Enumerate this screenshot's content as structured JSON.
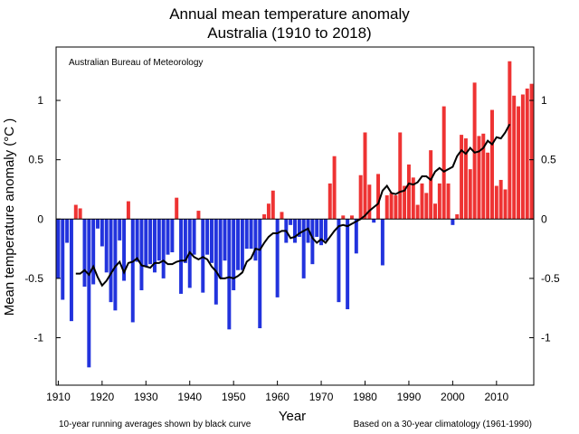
{
  "chart_data": {
    "type": "bar",
    "title": [
      "Annual mean temperature anomaly",
      "Australia (1910 to 2018)"
    ],
    "xlabel": "Year",
    "ylabel": "Mean temperature anomaly (°C )",
    "annotation": "Australian Bureau of Meteorology",
    "footnote_left": "10-year running averages shown by black curve",
    "footnote_right": "Based on a 30-year climatology (1961-1990)",
    "xlim": [
      1909.5,
      2018.5
    ],
    "ylim": [
      -1.4,
      1.45
    ],
    "x_ticks": [
      1910,
      1920,
      1930,
      1940,
      1950,
      1960,
      1970,
      1980,
      1990,
      2000,
      2010
    ],
    "y_ticks": [
      -1,
      -0.5,
      0,
      0.5,
      1
    ],
    "grid": false,
    "colors": {
      "positive": "#ee3333",
      "negative": "#2233dd",
      "running_mean": "#000000"
    },
    "x": [
      1910,
      1911,
      1912,
      1913,
      1914,
      1915,
      1916,
      1917,
      1918,
      1919,
      1920,
      1921,
      1922,
      1923,
      1924,
      1925,
      1926,
      1927,
      1928,
      1929,
      1930,
      1931,
      1932,
      1933,
      1934,
      1935,
      1936,
      1937,
      1938,
      1939,
      1940,
      1941,
      1942,
      1943,
      1944,
      1945,
      1946,
      1947,
      1948,
      1949,
      1950,
      1951,
      1952,
      1953,
      1954,
      1955,
      1956,
      1957,
      1958,
      1959,
      1960,
      1961,
      1962,
      1963,
      1964,
      1965,
      1966,
      1967,
      1968,
      1969,
      1970,
      1971,
      1972,
      1973,
      1974,
      1975,
      1976,
      1977,
      1978,
      1979,
      1980,
      1981,
      1982,
      1983,
      1984,
      1985,
      1986,
      1987,
      1988,
      1989,
      1990,
      1991,
      1992,
      1993,
      1994,
      1995,
      1996,
      1997,
      1998,
      1999,
      2000,
      2001,
      2002,
      2003,
      2004,
      2005,
      2006,
      2007,
      2008,
      2009,
      2010,
      2011,
      2012,
      2013,
      2014,
      2015,
      2016,
      2017,
      2018
    ],
    "values": [
      -0.5,
      -0.68,
      -0.2,
      -0.86,
      0.12,
      0.09,
      -0.57,
      -1.25,
      -0.55,
      -0.08,
      -0.23,
      -0.45,
      -0.7,
      -0.77,
      -0.18,
      -0.52,
      0.15,
      -0.87,
      -0.36,
      -0.6,
      -0.4,
      -0.38,
      -0.45,
      -0.35,
      -0.5,
      -0.3,
      -0.28,
      0.18,
      -0.63,
      -0.37,
      -0.58,
      -0.3,
      0.07,
      -0.62,
      -0.3,
      -0.37,
      -0.72,
      -0.5,
      -0.35,
      -0.93,
      -0.6,
      -0.43,
      -0.43,
      -0.25,
      -0.25,
      -0.35,
      -0.92,
      0.04,
      0.13,
      0.24,
      -0.66,
      0.06,
      -0.2,
      -0.05,
      -0.2,
      -0.15,
      -0.5,
      -0.2,
      -0.38,
      -0.15,
      -0.22,
      -0.18,
      0.3,
      0.53,
      -0.7,
      0.03,
      -0.76,
      0.03,
      -0.29,
      0.37,
      0.73,
      0.29,
      -0.03,
      0.38,
      -0.39,
      0.2,
      0.22,
      0.2,
      0.73,
      0.28,
      0.46,
      0.35,
      0.12,
      0.3,
      0.22,
      0.58,
      0.13,
      0.3,
      0.95,
      0.3,
      -0.05,
      0.04,
      0.71,
      0.68,
      0.42,
      1.15,
      0.7,
      0.72,
      0.56,
      0.92,
      0.28,
      0.33,
      0.25,
      1.33,
      1.04,
      0.95,
      1.05,
      1.1,
      1.14
    ],
    "running_mean_x": [
      1914,
      1915,
      1916,
      1917,
      1918,
      1919,
      1920,
      1921,
      1922,
      1923,
      1924,
      1925,
      1926,
      1927,
      1928,
      1929,
      1930,
      1931,
      1932,
      1933,
      1934,
      1935,
      1936,
      1937,
      1938,
      1939,
      1940,
      1941,
      1942,
      1943,
      1944,
      1945,
      1946,
      1947,
      1948,
      1949,
      1950,
      1951,
      1952,
      1953,
      1954,
      1955,
      1956,
      1957,
      1958,
      1959,
      1960,
      1961,
      1962,
      1963,
      1964,
      1965,
      1966,
      1967,
      1968,
      1969,
      1970,
      1971,
      1972,
      1973,
      1974,
      1975,
      1976,
      1977,
      1978,
      1979,
      1980,
      1981,
      1982,
      1983,
      1984,
      1985,
      1986,
      1987,
      1988,
      1989,
      1990,
      1991,
      1992,
      1993,
      1994,
      1995,
      1996,
      1997,
      1998,
      1999,
      2000,
      2001,
      2002,
      2003,
      2004,
      2005,
      2006,
      2007,
      2008,
      2009,
      2010,
      2011,
      2012,
      2013
    ],
    "running_mean_y": [
      -0.46,
      -0.46,
      -0.43,
      -0.47,
      -0.4,
      -0.49,
      -0.56,
      -0.52,
      -0.46,
      -0.4,
      -0.36,
      -0.45,
      -0.37,
      -0.36,
      -0.33,
      -0.39,
      -0.4,
      -0.41,
      -0.37,
      -0.37,
      -0.35,
      -0.38,
      -0.38,
      -0.36,
      -0.35,
      -0.35,
      -0.28,
      -0.32,
      -0.34,
      -0.32,
      -0.34,
      -0.4,
      -0.44,
      -0.5,
      -0.5,
      -0.49,
      -0.5,
      -0.48,
      -0.45,
      -0.36,
      -0.33,
      -0.25,
      -0.26,
      -0.2,
      -0.15,
      -0.12,
      -0.12,
      -0.1,
      -0.1,
      -0.16,
      -0.15,
      -0.12,
      -0.1,
      -0.08,
      -0.16,
      -0.2,
      -0.17,
      -0.2,
      -0.15,
      -0.1,
      -0.06,
      -0.05,
      -0.06,
      -0.04,
      -0.02,
      0.0,
      0.03,
      0.07,
      0.1,
      0.13,
      0.24,
      0.28,
      0.22,
      0.21,
      0.23,
      0.24,
      0.3,
      0.29,
      0.31,
      0.36,
      0.36,
      0.33,
      0.4,
      0.43,
      0.4,
      0.42,
      0.44,
      0.53,
      0.58,
      0.55,
      0.6,
      0.56,
      0.57,
      0.6,
      0.66,
      0.63,
      0.69,
      0.68,
      0.73,
      0.8
    ]
  }
}
